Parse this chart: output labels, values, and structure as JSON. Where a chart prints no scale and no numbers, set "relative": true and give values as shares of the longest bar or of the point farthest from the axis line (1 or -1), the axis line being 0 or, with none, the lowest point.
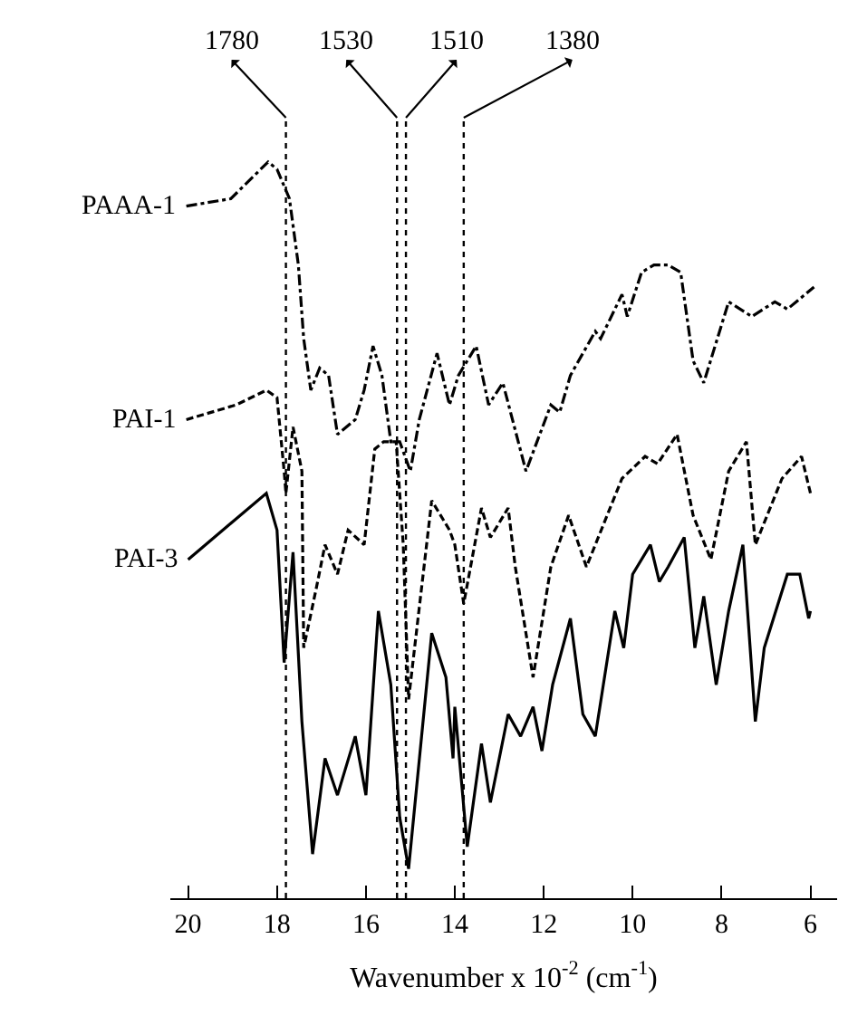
{
  "chart_data": {
    "type": "line",
    "relative": true,
    "xlabel": "Wavenumber x 10$^{-2}$ (cm$^{-1}$)",
    "xlim": [
      20.4,
      5.4
    ],
    "xticks": [
      20,
      18,
      16,
      14,
      12,
      10,
      8,
      6
    ],
    "legend": false,
    "marker": "none",
    "series": [
      {
        "name": "PAAA-1",
        "color": "#000000",
        "line_style": "dashdot",
        "x": [
          20.04,
          19.04,
          18.2,
          18.0,
          17.72,
          17.52,
          17.4,
          17.24,
          17.04,
          16.84,
          16.64,
          16.24,
          16.04,
          15.84,
          15.64,
          15.44,
          15.24,
          15.0,
          14.8,
          14.4,
          14.12,
          13.92,
          13.52,
          13.24,
          12.92,
          12.4,
          11.84,
          11.64,
          11.4,
          10.84,
          10.72,
          10.24,
          10.12,
          9.8,
          9.52,
          9.2,
          8.92,
          8.64,
          8.4,
          7.84,
          7.32,
          6.8,
          6.52,
          5.92
        ],
        "values": [
          0.94,
          0.95,
          1.0,
          0.99,
          0.95,
          0.86,
          0.76,
          0.69,
          0.72,
          0.71,
          0.63,
          0.65,
          0.69,
          0.75,
          0.71,
          0.62,
          0.62,
          0.58,
          0.65,
          0.74,
          0.67,
          0.71,
          0.75,
          0.67,
          0.7,
          0.58,
          0.67,
          0.66,
          0.71,
          0.77,
          0.76,
          0.82,
          0.79,
          0.85,
          0.86,
          0.86,
          0.85,
          0.73,
          0.7,
          0.81,
          0.79,
          0.81,
          0.8,
          0.83
        ]
      },
      {
        "name": "PAI-1",
        "color": "#000000",
        "line_style": "dashed",
        "x": [
          20.04,
          18.92,
          18.24,
          18.0,
          17.84,
          17.8,
          17.64,
          17.44,
          17.4,
          17.12,
          16.92,
          16.64,
          16.4,
          16.04,
          15.8,
          15.6,
          15.32,
          15.16,
          15.04,
          14.52,
          14.12,
          14.0,
          13.8,
          13.4,
          13.2,
          12.8,
          12.64,
          12.24,
          11.84,
          11.44,
          11.04,
          10.24,
          9.72,
          9.44,
          9.0,
          8.64,
          8.24,
          7.84,
          7.44,
          7.24,
          6.64,
          6.2,
          6.0
        ],
        "values": [
          0.65,
          0.67,
          0.69,
          0.68,
          0.58,
          0.55,
          0.64,
          0.58,
          0.34,
          0.42,
          0.48,
          0.44,
          0.5,
          0.48,
          0.61,
          0.62,
          0.62,
          0.48,
          0.27,
          0.54,
          0.5,
          0.48,
          0.4,
          0.53,
          0.49,
          0.53,
          0.45,
          0.3,
          0.45,
          0.52,
          0.45,
          0.57,
          0.6,
          0.59,
          0.63,
          0.52,
          0.46,
          0.58,
          0.62,
          0.48,
          0.57,
          0.6,
          0.55
        ]
      },
      {
        "name": "PAI-3",
        "color": "#000000",
        "line_style": "solid",
        "x": [
          20.0,
          18.24,
          18.0,
          17.84,
          17.64,
          17.44,
          17.2,
          16.92,
          16.64,
          16.24,
          16.0,
          15.72,
          15.44,
          15.24,
          15.04,
          14.52,
          14.2,
          14.04,
          14.0,
          13.72,
          13.4,
          13.2,
          12.8,
          12.52,
          12.24,
          12.04,
          11.8,
          11.4,
          11.12,
          10.84,
          10.4,
          10.2,
          10.0,
          9.6,
          9.4,
          9.2,
          8.84,
          8.6,
          8.4,
          8.12,
          7.84,
          7.52,
          7.24,
          7.04,
          6.52,
          6.24,
          6.04,
          6.0
        ],
        "values": [
          0.46,
          0.55,
          0.5,
          0.32,
          0.47,
          0.24,
          0.06,
          0.19,
          0.14,
          0.22,
          0.14,
          0.39,
          0.29,
          0.11,
          0.04,
          0.36,
          0.3,
          0.19,
          0.26,
          0.07,
          0.21,
          0.13,
          0.25,
          0.22,
          0.26,
          0.2,
          0.29,
          0.38,
          0.25,
          0.22,
          0.39,
          0.34,
          0.44,
          0.48,
          0.43,
          0.45,
          0.49,
          0.34,
          0.41,
          0.29,
          0.39,
          0.48,
          0.24,
          0.34,
          0.44,
          0.44,
          0.38,
          0.39
        ]
      }
    ],
    "ref_lines": [
      {
        "axis": "x",
        "value": 17.8,
        "label": "1780",
        "line_style": "dotted",
        "color": "#000000"
      },
      {
        "axis": "x",
        "value": 15.3,
        "label": "1530",
        "line_style": "dotted",
        "color": "#000000"
      },
      {
        "axis": "x",
        "value": 15.1,
        "label": "1510",
        "line_style": "dotted",
        "color": "#000000"
      },
      {
        "axis": "x",
        "value": 13.8,
        "label": "1380",
        "line_style": "dotted",
        "color": "#000000"
      }
    ]
  }
}
